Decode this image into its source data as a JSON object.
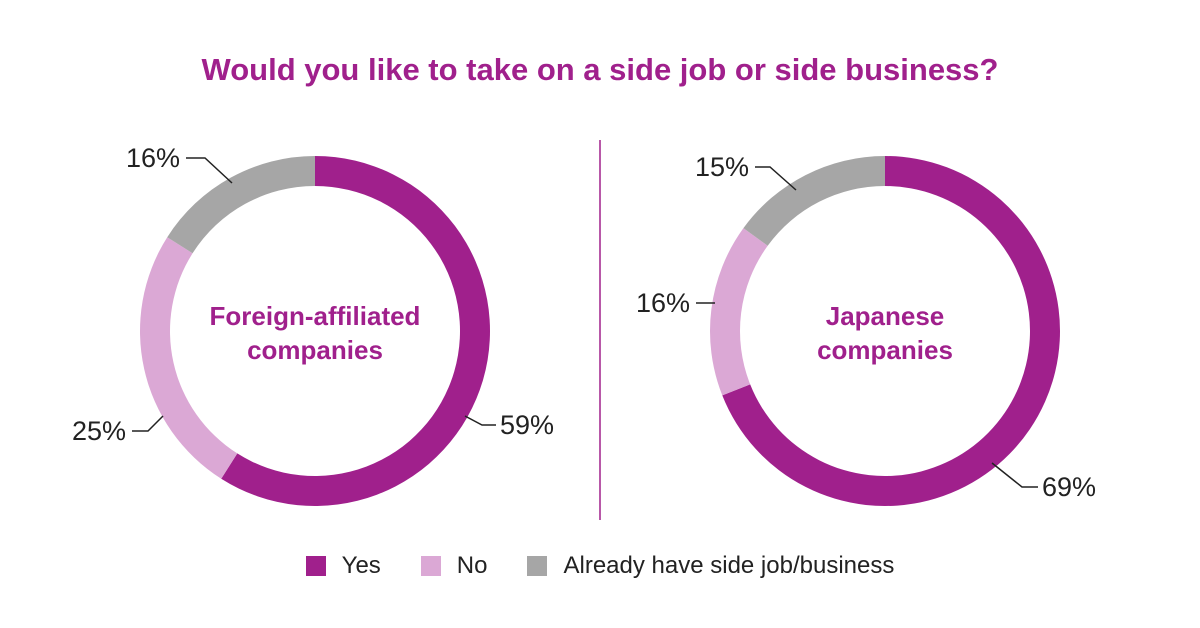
{
  "title": "Would you like to take on a side job or side business?",
  "colors": {
    "Yes": "#a0208c",
    "No": "#dba8d5",
    "Already have side job/business": "#a6a6a6",
    "title": "#a0208c"
  },
  "legend": [
    {
      "label": "Yes",
      "color": "#a0208c"
    },
    {
      "label": "No",
      "color": "#dba8d5"
    },
    {
      "label": "Already have side job/business",
      "color": "#a6a6a6"
    }
  ],
  "chart_data": [
    {
      "type": "pie",
      "subtype": "donut",
      "title": "Foreign-affiliated companies",
      "center_label": [
        "Foreign-affiliated",
        "companies"
      ],
      "categories": [
        "Yes",
        "No",
        "Already have side job/business"
      ],
      "values": [
        59,
        25,
        16
      ],
      "labels": [
        "59%",
        "25%",
        "16%"
      ],
      "unit": "%"
    },
    {
      "type": "pie",
      "subtype": "donut",
      "title": "Japanese companies",
      "center_label": [
        "Japanese",
        "companies"
      ],
      "categories": [
        "Yes",
        "No",
        "Already have side job/business"
      ],
      "values": [
        69,
        16,
        15
      ],
      "labels": [
        "69%",
        "16%",
        "15%"
      ],
      "unit": "%"
    }
  ]
}
